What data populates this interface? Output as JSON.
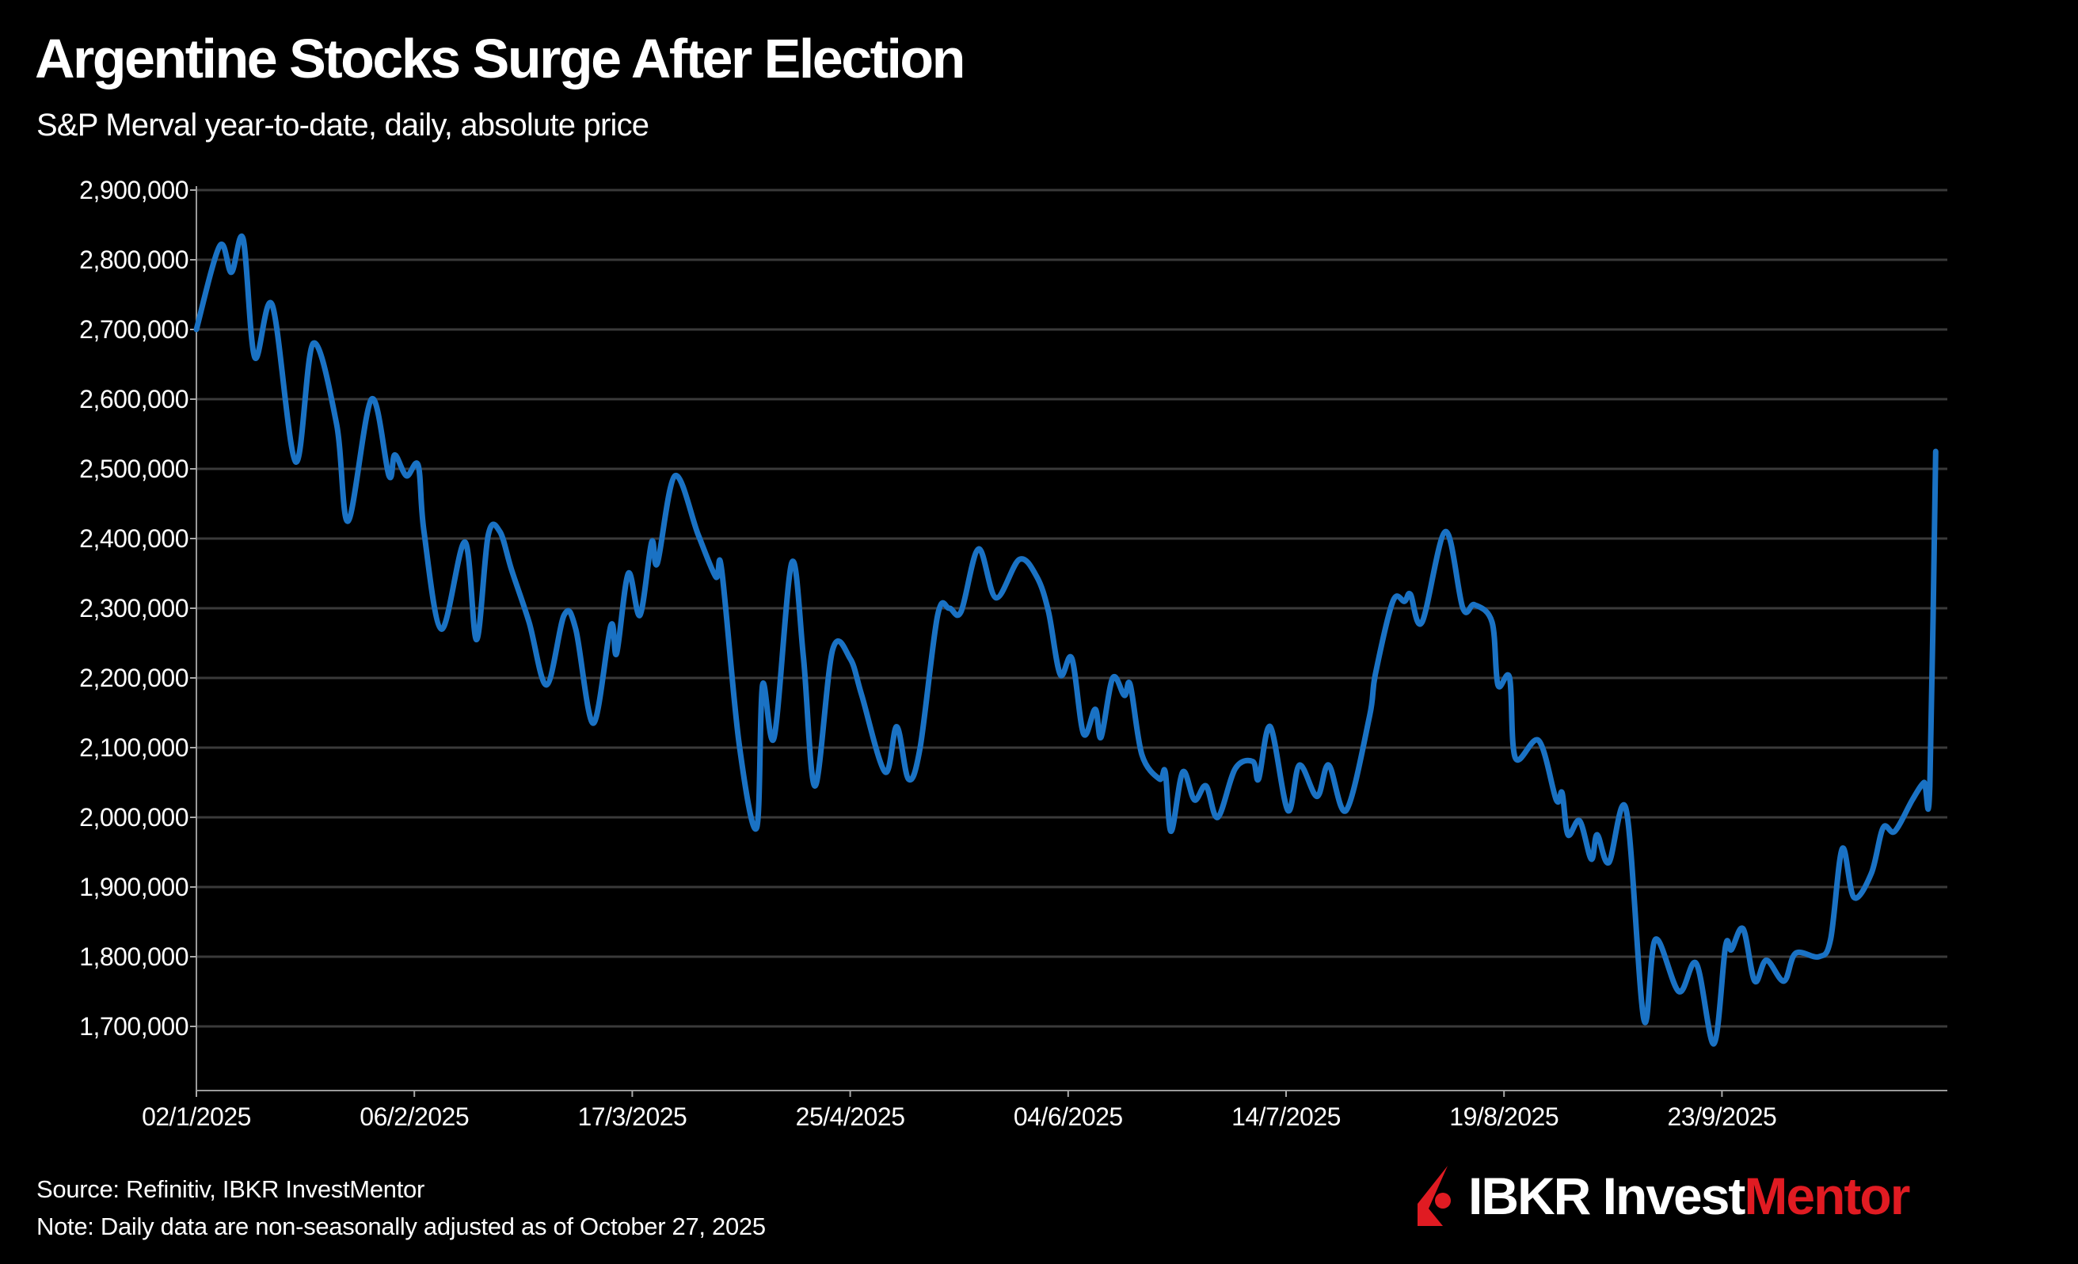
{
  "title": "Argentine Stocks Surge After Election",
  "subtitle": "S&P Merval year-to-date, daily, absolute price",
  "footer": {
    "source": "Source: Refinitiv, IBKR InvestMentor",
    "note": "Note: Daily data are non-seasonally adjusted as of October 27, 2025"
  },
  "logo": {
    "part1": "IBKR Invest",
    "part2": "Mentor",
    "icon": "ibkr-logo-icon"
  },
  "colors": {
    "background": "#000000",
    "line": "#1a72c4",
    "grid": "#3a3a3a",
    "brand_red": "#e01b22"
  },
  "chart_data": {
    "type": "line",
    "title": "Argentine Stocks Surge After Election",
    "xlabel": "",
    "ylabel": "",
    "ylim": [
      1610000,
      2900000
    ],
    "xlim": [
      "2025-01-02",
      "2025-10-29"
    ],
    "grid": "horizontal",
    "y_ticks": [
      {
        "value": 2900000,
        "label": "2,900,000"
      },
      {
        "value": 2800000,
        "label": "2,800,000"
      },
      {
        "value": 2700000,
        "label": "2,700,000"
      },
      {
        "value": 2600000,
        "label": "2,600,000"
      },
      {
        "value": 2500000,
        "label": "2,500,000"
      },
      {
        "value": 2400000,
        "label": "2,400,000"
      },
      {
        "value": 2300000,
        "label": "2,300,000"
      },
      {
        "value": 2200000,
        "label": "2,200,000"
      },
      {
        "value": 2100000,
        "label": "2,100,000"
      },
      {
        "value": 2000000,
        "label": "2,000,000"
      },
      {
        "value": 1900000,
        "label": "1,900,000"
      },
      {
        "value": 1800000,
        "label": "1,800,000"
      },
      {
        "value": 1700000,
        "label": "1,700,000"
      }
    ],
    "x_ticks": [
      {
        "date": "2025-01-02",
        "label": "02/1/2025"
      },
      {
        "date": "2025-02-06",
        "label": "06/2/2025"
      },
      {
        "date": "2025-03-17",
        "label": "17/3/2025"
      },
      {
        "date": "2025-04-25",
        "label": "25/4/2025"
      },
      {
        "date": "2025-06-04",
        "label": "04/6/2025"
      },
      {
        "date": "2025-07-14",
        "label": "14/7/2025"
      },
      {
        "date": "2025-08-19",
        "label": "19/8/2025"
      },
      {
        "date": "2025-09-23",
        "label": "23/9/2025"
      }
    ],
    "series": [
      {
        "points": [
          [
            "2025-01-02",
            2700000
          ],
          [
            "2025-01-06",
            2820000
          ],
          [
            "2025-01-08",
            2782000
          ],
          [
            "2025-01-10",
            2830000
          ],
          [
            "2025-01-12",
            2660000
          ],
          [
            "2025-01-15",
            2735000
          ],
          [
            "2025-01-19",
            2510000
          ],
          [
            "2025-01-22",
            2680000
          ],
          [
            "2025-01-26",
            2565000
          ],
          [
            "2025-01-28",
            2425000
          ],
          [
            "2025-02-01",
            2600000
          ],
          [
            "2025-02-04",
            2490000
          ],
          [
            "2025-02-05",
            2520000
          ],
          [
            "2025-02-07",
            2490000
          ],
          [
            "2025-02-09",
            2505000
          ],
          [
            "2025-02-10",
            2410000
          ],
          [
            "2025-02-13",
            2270000
          ],
          [
            "2025-02-17",
            2395000
          ],
          [
            "2025-02-19",
            2255000
          ],
          [
            "2025-02-21",
            2405000
          ],
          [
            "2025-02-23",
            2410000
          ],
          [
            "2025-02-25",
            2355000
          ],
          [
            "2025-02-28",
            2280000
          ],
          [
            "2025-03-03",
            2190000
          ],
          [
            "2025-03-06",
            2290000
          ],
          [
            "2025-03-08",
            2270000
          ],
          [
            "2025-03-11",
            2135000
          ],
          [
            "2025-03-14",
            2275000
          ],
          [
            "2025-03-15",
            2235000
          ],
          [
            "2025-03-17",
            2350000
          ],
          [
            "2025-03-19",
            2290000
          ],
          [
            "2025-03-21",
            2395000
          ],
          [
            "2025-03-22",
            2365000
          ],
          [
            "2025-03-25",
            2490000
          ],
          [
            "2025-03-29",
            2405000
          ],
          [
            "2025-04-01",
            2345000
          ],
          [
            "2025-04-02",
            2355000
          ],
          [
            "2025-04-05",
            2105000
          ],
          [
            "2025-04-08",
            1985000
          ],
          [
            "2025-04-09",
            2190000
          ],
          [
            "2025-04-11",
            2115000
          ],
          [
            "2025-04-14",
            2365000
          ],
          [
            "2025-04-16",
            2230000
          ],
          [
            "2025-04-18",
            2045000
          ],
          [
            "2025-04-21",
            2240000
          ],
          [
            "2025-04-24",
            2228000
          ],
          [
            "2025-04-26",
            2175000
          ],
          [
            "2025-04-30",
            2065000
          ],
          [
            "2025-05-02",
            2130000
          ],
          [
            "2025-05-04",
            2055000
          ],
          [
            "2025-05-06",
            2100000
          ],
          [
            "2025-05-09",
            2290000
          ],
          [
            "2025-05-11",
            2300000
          ],
          [
            "2025-05-13",
            2295000
          ],
          [
            "2025-05-16",
            2385000
          ],
          [
            "2025-05-19",
            2315000
          ],
          [
            "2025-05-23",
            2370000
          ],
          [
            "2025-05-26",
            2345000
          ],
          [
            "2025-05-28",
            2295000
          ],
          [
            "2025-05-30",
            2205000
          ],
          [
            "2025-06-01",
            2228000
          ],
          [
            "2025-06-03",
            2120000
          ],
          [
            "2025-06-05",
            2155000
          ],
          [
            "2025-06-06",
            2115000
          ],
          [
            "2025-06-08",
            2200000
          ],
          [
            "2025-06-10",
            2175000
          ],
          [
            "2025-06-11",
            2190000
          ],
          [
            "2025-06-13",
            2090000
          ],
          [
            "2025-06-16",
            2055000
          ],
          [
            "2025-06-17",
            2065000
          ],
          [
            "2025-06-18",
            1980000
          ],
          [
            "2025-06-20",
            2065000
          ],
          [
            "2025-06-22",
            2025000
          ],
          [
            "2025-06-24",
            2045000
          ],
          [
            "2025-06-26",
            2000000
          ],
          [
            "2025-06-29",
            2070000
          ],
          [
            "2025-07-02",
            2080000
          ],
          [
            "2025-07-03",
            2055000
          ],
          [
            "2025-07-05",
            2130000
          ],
          [
            "2025-07-08",
            2010000
          ],
          [
            "2025-07-10",
            2075000
          ],
          [
            "2025-07-13",
            2030000
          ],
          [
            "2025-07-15",
            2075000
          ],
          [
            "2025-07-18",
            2010000
          ],
          [
            "2025-07-22",
            2145000
          ],
          [
            "2025-07-23",
            2205000
          ],
          [
            "2025-07-26",
            2310000
          ],
          [
            "2025-07-28",
            2310000
          ],
          [
            "2025-07-29",
            2320000
          ],
          [
            "2025-07-31",
            2280000
          ],
          [
            "2025-08-04",
            2410000
          ],
          [
            "2025-08-07",
            2300000
          ],
          [
            "2025-08-09",
            2305000
          ],
          [
            "2025-08-12",
            2280000
          ],
          [
            "2025-08-13",
            2190000
          ],
          [
            "2025-08-15",
            2200000
          ],
          [
            "2025-08-16",
            2085000
          ],
          [
            "2025-08-20",
            2110000
          ],
          [
            "2025-08-23",
            2025000
          ],
          [
            "2025-08-24",
            2035000
          ],
          [
            "2025-08-25",
            1975000
          ],
          [
            "2025-08-27",
            1995000
          ],
          [
            "2025-08-29",
            1940000
          ],
          [
            "2025-08-30",
            1975000
          ],
          [
            "2025-09-01",
            1935000
          ],
          [
            "2025-09-04",
            2010000
          ],
          [
            "2025-09-07",
            1710000
          ],
          [
            "2025-09-09",
            1825000
          ],
          [
            "2025-09-13",
            1750000
          ],
          [
            "2025-09-16",
            1790000
          ],
          [
            "2025-09-19",
            1675000
          ],
          [
            "2025-09-21",
            1815000
          ],
          [
            "2025-09-22",
            1810000
          ],
          [
            "2025-09-24",
            1840000
          ],
          [
            "2025-09-26",
            1765000
          ],
          [
            "2025-09-28",
            1795000
          ],
          [
            "2025-10-01",
            1765000
          ],
          [
            "2025-10-03",
            1805000
          ],
          [
            "2025-10-07",
            1800000
          ],
          [
            "2025-10-09",
            1825000
          ],
          [
            "2025-10-11",
            1955000
          ],
          [
            "2025-10-13",
            1885000
          ],
          [
            "2025-10-16",
            1920000
          ],
          [
            "2025-10-18",
            1985000
          ],
          [
            "2025-10-20",
            1980000
          ],
          [
            "2025-10-23",
            2025000
          ],
          [
            "2025-10-25",
            2050000
          ],
          [
            "2025-10-26",
            2045000
          ],
          [
            "2025-10-27",
            2525000
          ]
        ]
      }
    ]
  }
}
